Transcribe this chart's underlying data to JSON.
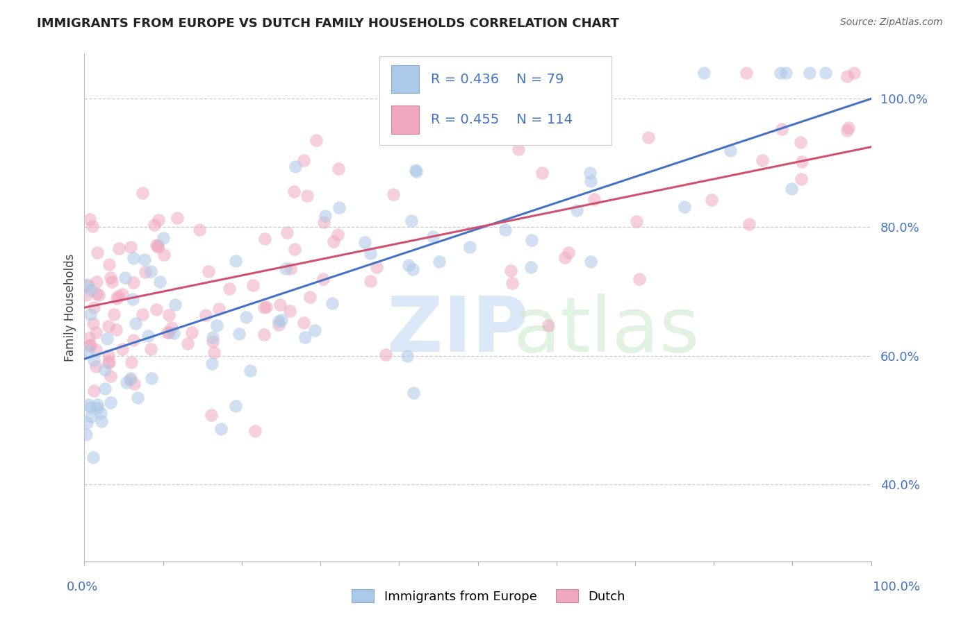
{
  "title": "IMMIGRANTS FROM EUROPE VS DUTCH FAMILY HOUSEHOLDS CORRELATION CHART",
  "source": "Source: ZipAtlas.com",
  "ylabel": "Family Households",
  "y_ticks": [
    0.4,
    0.6,
    0.8,
    1.0
  ],
  "y_tick_labels": [
    "40.0%",
    "60.0%",
    "80.0%",
    "100.0%"
  ],
  "legend_blue_r": "R = 0.436",
  "legend_blue_n": "N = 79",
  "legend_pink_r": "R = 0.455",
  "legend_pink_n": "N = 114",
  "legend_label_blue": "Immigrants from Europe",
  "legend_label_pink": "Dutch",
  "blue_dot_color": "#aac8e8",
  "pink_dot_color": "#f0a8c0",
  "blue_line_color": "#4472c4",
  "pink_line_color": "#d05070",
  "blue_text_color": "#4472c4",
  "pink_text_color": "#d05070",
  "grid_color": "#cccccc",
  "blue_trend_y0": 0.595,
  "blue_trend_y1": 1.0,
  "pink_trend_y0": 0.675,
  "pink_trend_y1": 0.925,
  "xlim": [
    0.0,
    1.0
  ],
  "ylim": [
    0.28,
    1.07
  ],
  "dot_size": 180,
  "dot_alpha": 0.55,
  "seed_blue": 77,
  "seed_pink": 88
}
